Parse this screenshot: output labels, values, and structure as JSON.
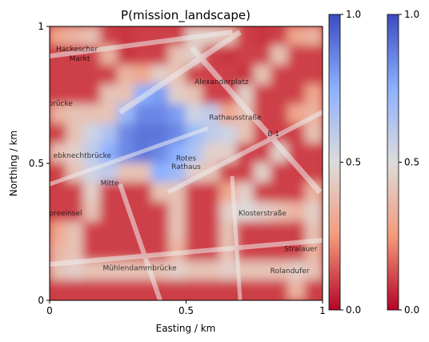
{
  "chart_data": {
    "type": "heatmap",
    "title": "P(mission_landscape)",
    "xlabel": "Easting / km",
    "ylabel": "Northing / km",
    "xlim": [
      0,
      1
    ],
    "ylim": [
      0,
      1
    ],
    "xticks": [
      {
        "value": 0,
        "label": "0"
      },
      {
        "value": 0.5,
        "label": "0.5"
      },
      {
        "value": 1,
        "label": "1"
      }
    ],
    "yticks": [
      {
        "value": 0,
        "label": "0"
      },
      {
        "value": 0.5,
        "label": "0.5"
      },
      {
        "value": 1,
        "label": "1"
      }
    ],
    "colormap": "coolwarm",
    "colormap_colors": {
      "low": "#b40426",
      "mid": "#dddcdc",
      "high": "#3b4cc0"
    },
    "colorbars": [
      {
        "ticks": [
          {
            "value": 0,
            "label": "0.0"
          },
          {
            "value": 0.5,
            "label": "0.5"
          },
          {
            "value": 1,
            "label": "1.0"
          }
        ]
      },
      {
        "ticks": [
          {
            "value": 0,
            "label": "0.0"
          },
          {
            "value": 0.5,
            "label": "0.5"
          },
          {
            "value": 1,
            "label": "1.0"
          }
        ]
      }
    ],
    "grid": false,
    "probability_grid": {
      "rows_top_to_bottom": [
        [
          0.3,
          0.35,
          0.4,
          0.1,
          0.08,
          0.1,
          0.1,
          0.1,
          0.45,
          0.45,
          0.4,
          0.1,
          0.08,
          0.1,
          0.3,
          0.35
        ],
        [
          0.1,
          0.1,
          0.1,
          0.35,
          0.08,
          0.1,
          0.1,
          0.4,
          0.45,
          0.1,
          0.08,
          0.1,
          0.1,
          0.4,
          0.1,
          0.1
        ],
        [
          0.1,
          0.1,
          0.1,
          0.1,
          0.35,
          0.3,
          0.45,
          0.4,
          0.1,
          0.1,
          0.1,
          0.08,
          0.4,
          0.1,
          0.1,
          0.1
        ],
        [
          0.1,
          0.1,
          0.1,
          0.4,
          0.4,
          0.75,
          0.8,
          0.45,
          0.4,
          0.1,
          0.1,
          0.45,
          0.1,
          0.1,
          0.1,
          0.3
        ],
        [
          0.35,
          0.4,
          0.4,
          0.4,
          0.7,
          0.85,
          0.85,
          0.8,
          0.55,
          0.6,
          0.3,
          0.4,
          0.1,
          0.1,
          0.3,
          0.35
        ],
        [
          0.1,
          0.4,
          0.55,
          0.65,
          0.85,
          0.9,
          0.9,
          0.85,
          0.7,
          0.6,
          0.55,
          0.4,
          0.1,
          0.1,
          0.1,
          0.4
        ],
        [
          0.4,
          0.45,
          0.6,
          0.75,
          0.85,
          0.9,
          0.85,
          0.75,
          0.65,
          0.45,
          0.45,
          0.1,
          0.1,
          0.45,
          0.1,
          0.1
        ],
        [
          0.1,
          0.4,
          0.55,
          0.6,
          0.4,
          0.4,
          0.75,
          0.7,
          0.45,
          0.4,
          0.1,
          0.1,
          0.45,
          0.1,
          0.1,
          0.1
        ],
        [
          0.1,
          0.1,
          0.45,
          0.1,
          0.1,
          0.1,
          0.4,
          0.4,
          0.1,
          0.1,
          0.3,
          0.45,
          0.1,
          0.1,
          0.1,
          0.35
        ],
        [
          0.1,
          0.1,
          0.4,
          0.1,
          0.1,
          0.1,
          0.1,
          0.4,
          0.1,
          0.1,
          0.45,
          0.5,
          0.45,
          0.4,
          0.35,
          0.45
        ],
        [
          0.3,
          0.4,
          0.1,
          0.1,
          0.1,
          0.1,
          0.1,
          0.4,
          0.1,
          0.1,
          0.4,
          0.1,
          0.1,
          0.1,
          0.1,
          0.4
        ],
        [
          0.35,
          0.4,
          0.1,
          0.1,
          0.1,
          0.1,
          0.1,
          0.35,
          0.1,
          0.1,
          0.4,
          0.1,
          0.1,
          0.1,
          0.1,
          0.35
        ],
        [
          0.4,
          0.45,
          0.4,
          0.4,
          0.4,
          0.4,
          0.4,
          0.45,
          0.4,
          0.4,
          0.45,
          0.4,
          0.4,
          0.4,
          0.45,
          0.4
        ],
        [
          0.1,
          0.1,
          0.1,
          0.1,
          0.1,
          0.1,
          0.1,
          0.1,
          0.1,
          0.1,
          0.1,
          0.1,
          0.1,
          0.1,
          0.35,
          0.1
        ]
      ]
    },
    "map_labels": [
      {
        "text": "Hackescher",
        "x": 0.1,
        "y": 0.91
      },
      {
        "text": "Markt",
        "x": 0.11,
        "y": 0.875
      },
      {
        "text": "Alexanderplatz",
        "x": 0.63,
        "y": 0.79
      },
      {
        "text": "brücke",
        "x": 0.04,
        "y": 0.71
      },
      {
        "text": "Rathausstraße",
        "x": 0.68,
        "y": 0.66
      },
      {
        "text": "B 1",
        "x": 0.82,
        "y": 0.6
      },
      {
        "text": "ebknechtbrücke",
        "x": 0.12,
        "y": 0.52
      },
      {
        "text": "Rotes",
        "x": 0.5,
        "y": 0.51
      },
      {
        "text": "Rathaus",
        "x": 0.5,
        "y": 0.48
      },
      {
        "text": "Mitte",
        "x": 0.22,
        "y": 0.42
      },
      {
        "text": "Spreeinsel",
        "x": 0.05,
        "y": 0.31
      },
      {
        "text": "Klosterstraße",
        "x": 0.78,
        "y": 0.31
      },
      {
        "text": "Stralauer",
        "x": 0.92,
        "y": 0.18
      },
      {
        "text": "Mühlendammbrücke",
        "x": 0.33,
        "y": 0.11
      },
      {
        "text": "Rolandufer",
        "x": 0.88,
        "y": 0.1
      }
    ]
  }
}
